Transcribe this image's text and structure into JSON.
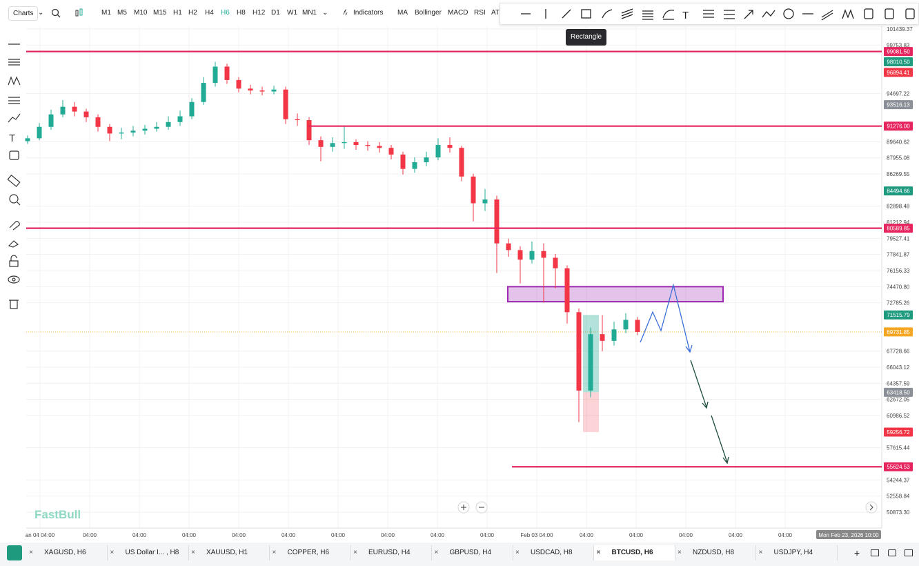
{
  "toolbar": {
    "charts": "Charts",
    "timeframes": [
      "M1",
      "M5",
      "M10",
      "M15",
      "H1",
      "H2",
      "H4",
      "H6",
      "H8",
      "H12",
      "D1",
      "W1",
      "MN1"
    ],
    "indicators": "Indicators",
    "studies": [
      "MA",
      "Bollinger",
      "MACD",
      "RSI",
      "AT"
    ],
    "tooltip": "Rectangle"
  },
  "chart_data": {
    "type": "candlestick",
    "watermark": "FastBull",
    "ylim": [
      50873.3,
      101439.37
    ],
    "yticks": [
      101439.37,
      99753.83,
      94697.22,
      89640.62,
      87955.08,
      86269.55,
      82898.48,
      81212.94,
      79527.41,
      77841.87,
      76156.33,
      {
        "value": 74470.8,
        "label": "74470.80"
      },
      72785.26,
      67728.66,
      66043.12,
      64357.59,
      62672.05,
      60986.52,
      57615.44,
      54244.37,
      52558.84,
      {
        "value": 50873.3,
        "label": "50873.30"
      }
    ],
    "time_labels": [
      "an 04 04:00",
      "04:00",
      "04:00",
      "04:00",
      "04:00",
      "04:00",
      "04:00",
      "04:00",
      "04:00",
      "04:00",
      "Feb 03 04:00",
      "04:00",
      "04:00",
      "04:00",
      "04:00",
      "04:00"
    ],
    "crosshair_time": "Mon Feb 23, 2026 10:00",
    "up_color": "#22ab94",
    "down_color": "#f23645",
    "candles": {
      "open": [
        89700,
        90000,
        91200,
        92500,
        93300,
        92800,
        92200,
        91200,
        90500,
        90600,
        90800,
        91000,
        91200,
        91700,
        92300,
        93800,
        95800,
        97500,
        96100,
        95200,
        95000,
        94900,
        95100,
        92000,
        91900,
        89800,
        89100,
        89500,
        89600,
        89300,
        89200,
        89000,
        88300,
        86800,
        87500,
        88000,
        89300,
        89000,
        86000,
        83200,
        83600,
        79000,
        78300,
        77300,
        78200,
        77500,
        76400,
        71800,
        63600,
        69500,
        68800,
        70000,
        71000
      ],
      "high": [
        90300,
        91600,
        93000,
        94000,
        93800,
        93100,
        92500,
        91500,
        91100,
        91300,
        91400,
        91700,
        92300,
        92900,
        94200,
        96400,
        98000,
        97800,
        96400,
        95600,
        95400,
        95500,
        95400,
        92600,
        92200,
        90200,
        90100,
        91300,
        89900,
        89700,
        89600,
        89300,
        88600,
        88000,
        88600,
        90000,
        90100,
        89200,
        86300,
        84700,
        84000,
        79500,
        78700,
        79200,
        79000,
        77900,
        76700,
        72200,
        70200,
        71500,
        70800,
        71700,
        71300
      ],
      "low": [
        89400,
        89800,
        90900,
        92200,
        92300,
        91700,
        90700,
        89700,
        89900,
        90200,
        90400,
        90700,
        90900,
        91300,
        92000,
        93500,
        95400,
        95700,
        94800,
        94600,
        94500,
        94600,
        91500,
        91300,
        89300,
        87600,
        88600,
        88900,
        88800,
        88700,
        88500,
        87800,
        86200,
        86400,
        87100,
        87700,
        88500,
        85500,
        81300,
        82400,
        75900,
        77600,
        74800,
        76900,
        72800,
        74300,
        70600,
        60300,
        62900,
        67700,
        68300,
        69600,
        69400
      ],
      "close": [
        90000,
        91200,
        92500,
        93300,
        92800,
        92200,
        91200,
        90500,
        90600,
        90800,
        91000,
        91200,
        91700,
        92300,
        93800,
        95800,
        97500,
        96100,
        95200,
        95000,
        94900,
        95100,
        92000,
        91900,
        89800,
        89100,
        89500,
        89600,
        89300,
        89200,
        89000,
        88300,
        86800,
        87500,
        88000,
        89300,
        89000,
        86000,
        83200,
        83600,
        79000,
        78300,
        77300,
        78200,
        77500,
        76400,
        71800,
        63600,
        69500,
        68800,
        70000,
        71000,
        69731.85
      ]
    },
    "levels": [
      99081.5,
      91276,
      80589.85,
      55624.53
    ],
    "level_color": "#e6245e",
    "zone": [
      72900,
      74470.8
    ],
    "position": {
      "target": 71515.79,
      "entry": 63418.5,
      "stop": 59256.72
    },
    "current_price": 69731.85,
    "price_tags": [
      {
        "value": 99081.5,
        "label": "99081.50",
        "color": "#e6245e"
      },
      {
        "value": 98010.5,
        "label": "98010.50",
        "color": "#1e9a7f"
      },
      {
        "value": 96894.41,
        "label": "96894.41",
        "color": "#f23645"
      },
      {
        "value": 93516.13,
        "label": "93516.13",
        "color": "#8a8f98"
      },
      {
        "value": 91276,
        "label": "91276.00",
        "color": "#e6245e"
      },
      {
        "value": 84494.66,
        "label": "84494.66",
        "color": "#1e9a7f"
      },
      {
        "value": 80589.85,
        "label": "80589.85",
        "color": "#e6245e"
      },
      {
        "value": 71515.79,
        "label": "71515.79",
        "color": "#1e9a7f"
      },
      {
        "value": 69731.85,
        "label": "69731.85",
        "color": "#f5a623"
      },
      {
        "value": 63418.5,
        "label": "63418.50",
        "color": "#8a8f98"
      },
      {
        "value": 59256.72,
        "label": "59256.72",
        "color": "#f23645"
      },
      {
        "value": 55624.53,
        "label": "55624.53",
        "color": "#e6245e"
      }
    ]
  },
  "tabs": [
    "XAGUSD, H6",
    "US Dollar I... , H8",
    "XAUUSD, H1",
    "COPPER, H6",
    "EURUSD, H4",
    "GBPUSD, H4",
    "USDCAD, H8",
    "BTCUSD, H6",
    "NZDUSD, H8",
    "USDJPY, H4"
  ]
}
